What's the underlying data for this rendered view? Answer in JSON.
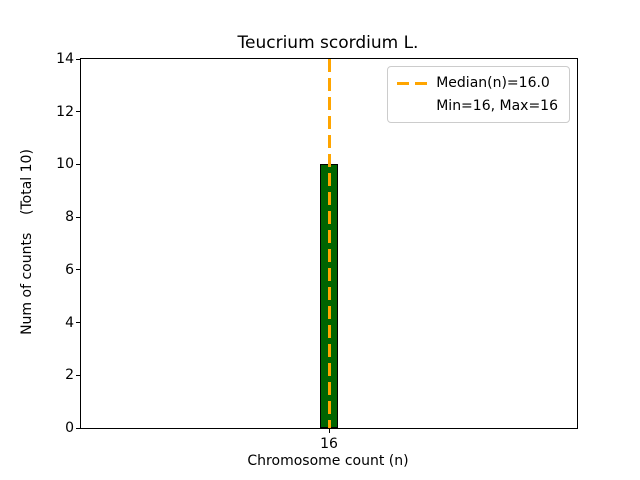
{
  "chart_data": {
    "type": "bar",
    "title": "Teucrium scordium L.",
    "xlabel": "Chromosome count (n)",
    "ylabel": "Num of counts    (Total 10)",
    "categories": [
      "16"
    ],
    "values": [
      10
    ],
    "ylim": [
      0,
      14
    ],
    "yticks": [
      0,
      2,
      4,
      6,
      8,
      10,
      12,
      14
    ],
    "median": 16.0,
    "min": 16,
    "max": 16,
    "grid": false,
    "legend_position": "upper right",
    "bar_color": "#006400",
    "bar_edge_color": "#000000",
    "median_line_color": "#FFA500",
    "legend": [
      {
        "label": "Median(n)=16.0",
        "sample": "dashed-line"
      },
      {
        "label": "Min=16, Max=16",
        "sample": "none"
      }
    ]
  }
}
